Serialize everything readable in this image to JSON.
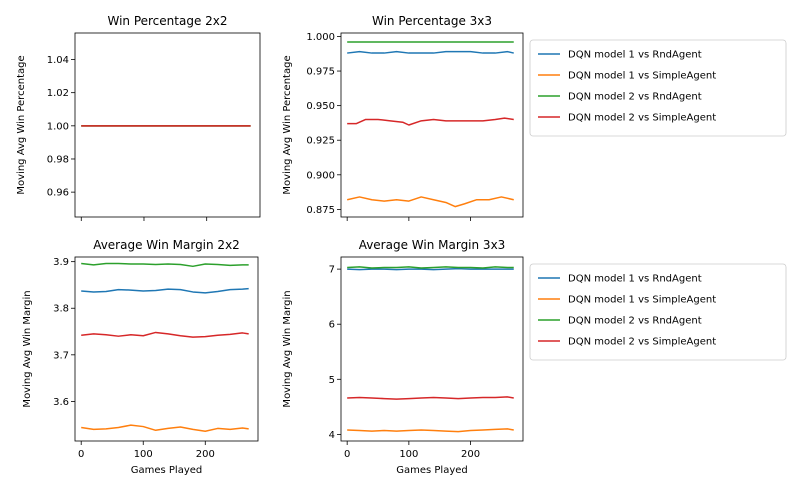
{
  "colors": {
    "c1": "#1f77b4",
    "c2": "#ff7f0e",
    "c3": "#2ca02c",
    "c4": "#d62728"
  },
  "chart_data": [
    {
      "type": "line",
      "title": "Win Percentage 2x2",
      "xlabel": "",
      "ylabel": "Moving Avg Win Percentage",
      "xlim": [
        -10,
        285
      ],
      "ylim": [
        0.945,
        1.056
      ],
      "xticks": [
        0,
        100,
        200
      ],
      "xtick_labels_shown": false,
      "yticks": [
        0.96,
        0.98,
        1.0,
        1.02,
        1.04
      ],
      "ytick_labels": [
        "0.96",
        "0.98",
        "1.00",
        "1.02",
        "1.04"
      ],
      "grid": false,
      "legend": "none",
      "series": [
        {
          "color": "#1f77b4",
          "base": 1.0,
          "amp": 0,
          "x": [
            0,
            270
          ],
          "values": [
            1.0,
            1.0
          ]
        },
        {
          "color": "#ff7f0e",
          "base": 1.0,
          "amp": 0,
          "x": [
            0,
            270
          ],
          "values": [
            1.0,
            1.0
          ]
        },
        {
          "color": "#2ca02c",
          "base": 1.0,
          "amp": 0,
          "x": [
            0,
            270
          ],
          "values": [
            1.0,
            1.0
          ]
        },
        {
          "color": "#d62728",
          "base": 1.0,
          "amp": 0,
          "x": [
            0,
            270
          ],
          "values": [
            1.0,
            1.0
          ]
        }
      ]
    },
    {
      "type": "line",
      "title": "Win Percentage 3x3",
      "xlabel": "",
      "ylabel": "Moving Avg Win Percentage",
      "xlim": [
        -10,
        285
      ],
      "ylim": [
        0.8695,
        1.0025
      ],
      "xticks": [
        0,
        100,
        200
      ],
      "xtick_labels_shown": false,
      "yticks": [
        0.875,
        0.9,
        0.925,
        0.95,
        0.975,
        1.0
      ],
      "ytick_labels": [
        "0.875",
        "0.900",
        "0.925",
        "0.950",
        "0.975",
        "1.000"
      ],
      "grid": false,
      "legend": "outside-right",
      "series": [
        {
          "name": "DQN model 1 vs RndAgent",
          "color": "#1f77b4",
          "x": [
            0,
            20,
            40,
            60,
            80,
            100,
            120,
            140,
            160,
            180,
            200,
            220,
            240,
            260,
            270
          ],
          "values": [
            0.988,
            0.989,
            0.988,
            0.988,
            0.989,
            0.988,
            0.988,
            0.988,
            0.989,
            0.989,
            0.989,
            0.988,
            0.988,
            0.989,
            0.988
          ]
        },
        {
          "name": "DQN model 1 vs SimpleAgent",
          "color": "#ff7f0e",
          "x": [
            0,
            20,
            40,
            60,
            80,
            100,
            120,
            140,
            160,
            175,
            190,
            210,
            230,
            250,
            270
          ],
          "values": [
            0.882,
            0.884,
            0.882,
            0.881,
            0.882,
            0.881,
            0.884,
            0.882,
            0.88,
            0.877,
            0.879,
            0.882,
            0.882,
            0.884,
            0.882
          ]
        },
        {
          "name": "DQN model 2 vs RndAgent",
          "color": "#2ca02c",
          "x": [
            0,
            20,
            40,
            60,
            80,
            100,
            120,
            140,
            160,
            180,
            200,
            220,
            240,
            260,
            270
          ],
          "values": [
            0.996,
            0.996,
            0.996,
            0.996,
            0.996,
            0.996,
            0.996,
            0.996,
            0.996,
            0.996,
            0.996,
            0.996,
            0.996,
            0.996,
            0.996
          ]
        },
        {
          "name": "DQN model 2 vs SimpleAgent",
          "color": "#d62728",
          "x": [
            0,
            15,
            30,
            50,
            70,
            90,
            100,
            120,
            140,
            160,
            180,
            200,
            220,
            240,
            255,
            270
          ],
          "values": [
            0.937,
            0.937,
            0.94,
            0.94,
            0.939,
            0.938,
            0.936,
            0.939,
            0.94,
            0.939,
            0.939,
            0.939,
            0.939,
            0.94,
            0.941,
            0.94
          ]
        }
      ]
    },
    {
      "type": "line",
      "title": "Average Win Margin 2x2",
      "xlabel": "Games Played",
      "ylabel": "Moving Avg Win Margin",
      "xlim": [
        -10,
        285
      ],
      "ylim": [
        3.515,
        3.91
      ],
      "xticks": [
        0,
        100,
        200
      ],
      "xtick_labels": [
        "0",
        "100",
        "200"
      ],
      "xtick_labels_shown": true,
      "yticks": [
        3.6,
        3.7,
        3.8,
        3.9
      ],
      "ytick_labels": [
        "3.6",
        "3.7",
        "3.8",
        "3.9"
      ],
      "grid": false,
      "legend": "none",
      "series": [
        {
          "color": "#1f77b4",
          "x": [
            0,
            20,
            40,
            60,
            80,
            100,
            120,
            140,
            160,
            180,
            200,
            220,
            240,
            260,
            270
          ],
          "values": [
            3.837,
            3.835,
            3.836,
            3.84,
            3.839,
            3.837,
            3.838,
            3.841,
            3.84,
            3.835,
            3.833,
            3.836,
            3.84,
            3.841,
            3.842
          ]
        },
        {
          "color": "#ff7f0e",
          "x": [
            0,
            20,
            40,
            60,
            80,
            100,
            120,
            140,
            160,
            180,
            200,
            220,
            240,
            260,
            270
          ],
          "values": [
            3.544,
            3.54,
            3.541,
            3.544,
            3.549,
            3.546,
            3.538,
            3.542,
            3.545,
            3.54,
            3.536,
            3.542,
            3.54,
            3.543,
            3.541
          ]
        },
        {
          "color": "#2ca02c",
          "x": [
            0,
            20,
            40,
            60,
            80,
            100,
            120,
            140,
            160,
            180,
            200,
            220,
            240,
            260,
            270
          ],
          "values": [
            3.896,
            3.893,
            3.896,
            3.896,
            3.895,
            3.895,
            3.894,
            3.895,
            3.894,
            3.89,
            3.895,
            3.894,
            3.892,
            3.893,
            3.893
          ]
        },
        {
          "color": "#d62728",
          "x": [
            0,
            20,
            40,
            60,
            80,
            100,
            120,
            140,
            160,
            180,
            200,
            220,
            240,
            260,
            270
          ],
          "values": [
            3.742,
            3.745,
            3.743,
            3.74,
            3.743,
            3.741,
            3.748,
            3.745,
            3.741,
            3.738,
            3.739,
            3.742,
            3.744,
            3.747,
            3.745
          ]
        }
      ]
    },
    {
      "type": "line",
      "title": "Average Win Margin 3x3",
      "xlabel": "Games Played",
      "ylabel": "Moving Avg Win Margin",
      "xlim": [
        -10,
        285
      ],
      "ylim": [
        3.88,
        7.22
      ],
      "xticks": [
        0,
        100,
        200
      ],
      "xtick_labels": [
        "0",
        "100",
        "200"
      ],
      "xtick_labels_shown": true,
      "yticks": [
        4,
        5,
        6,
        7
      ],
      "ytick_labels": [
        "4",
        "5",
        "6",
        "7"
      ],
      "grid": false,
      "legend": "outside-right",
      "series": [
        {
          "name": "DQN model 1 vs RndAgent",
          "color": "#1f77b4",
          "x": [
            0,
            20,
            40,
            60,
            80,
            100,
            120,
            140,
            160,
            180,
            200,
            220,
            240,
            260,
            270
          ],
          "values": [
            7.0,
            6.99,
            7.0,
            7.0,
            6.99,
            7.0,
            7.0,
            6.99,
            7.0,
            7.01,
            7.0,
            7.0,
            7.0,
            7.0,
            7.0
          ]
        },
        {
          "name": "DQN model 1 vs SimpleAgent",
          "color": "#ff7f0e",
          "x": [
            0,
            20,
            40,
            60,
            80,
            100,
            120,
            140,
            160,
            180,
            200,
            220,
            240,
            260,
            270
          ],
          "values": [
            4.08,
            4.07,
            4.06,
            4.07,
            4.06,
            4.07,
            4.08,
            4.07,
            4.06,
            4.05,
            4.07,
            4.08,
            4.09,
            4.1,
            4.08
          ]
        },
        {
          "name": "DQN model 2 vs RndAgent",
          "color": "#2ca02c",
          "x": [
            0,
            20,
            40,
            60,
            80,
            100,
            120,
            140,
            160,
            180,
            200,
            220,
            240,
            260,
            270
          ],
          "values": [
            7.03,
            7.04,
            7.02,
            7.03,
            7.03,
            7.04,
            7.02,
            7.03,
            7.04,
            7.03,
            7.03,
            7.02,
            7.04,
            7.03,
            7.03
          ]
        },
        {
          "name": "DQN model 2 vs SimpleAgent",
          "color": "#d62728",
          "x": [
            0,
            20,
            40,
            60,
            80,
            100,
            120,
            140,
            160,
            180,
            200,
            220,
            240,
            260,
            270
          ],
          "values": [
            4.66,
            4.67,
            4.66,
            4.65,
            4.64,
            4.65,
            4.66,
            4.67,
            4.66,
            4.65,
            4.66,
            4.67,
            4.67,
            4.68,
            4.66
          ]
        }
      ]
    }
  ]
}
